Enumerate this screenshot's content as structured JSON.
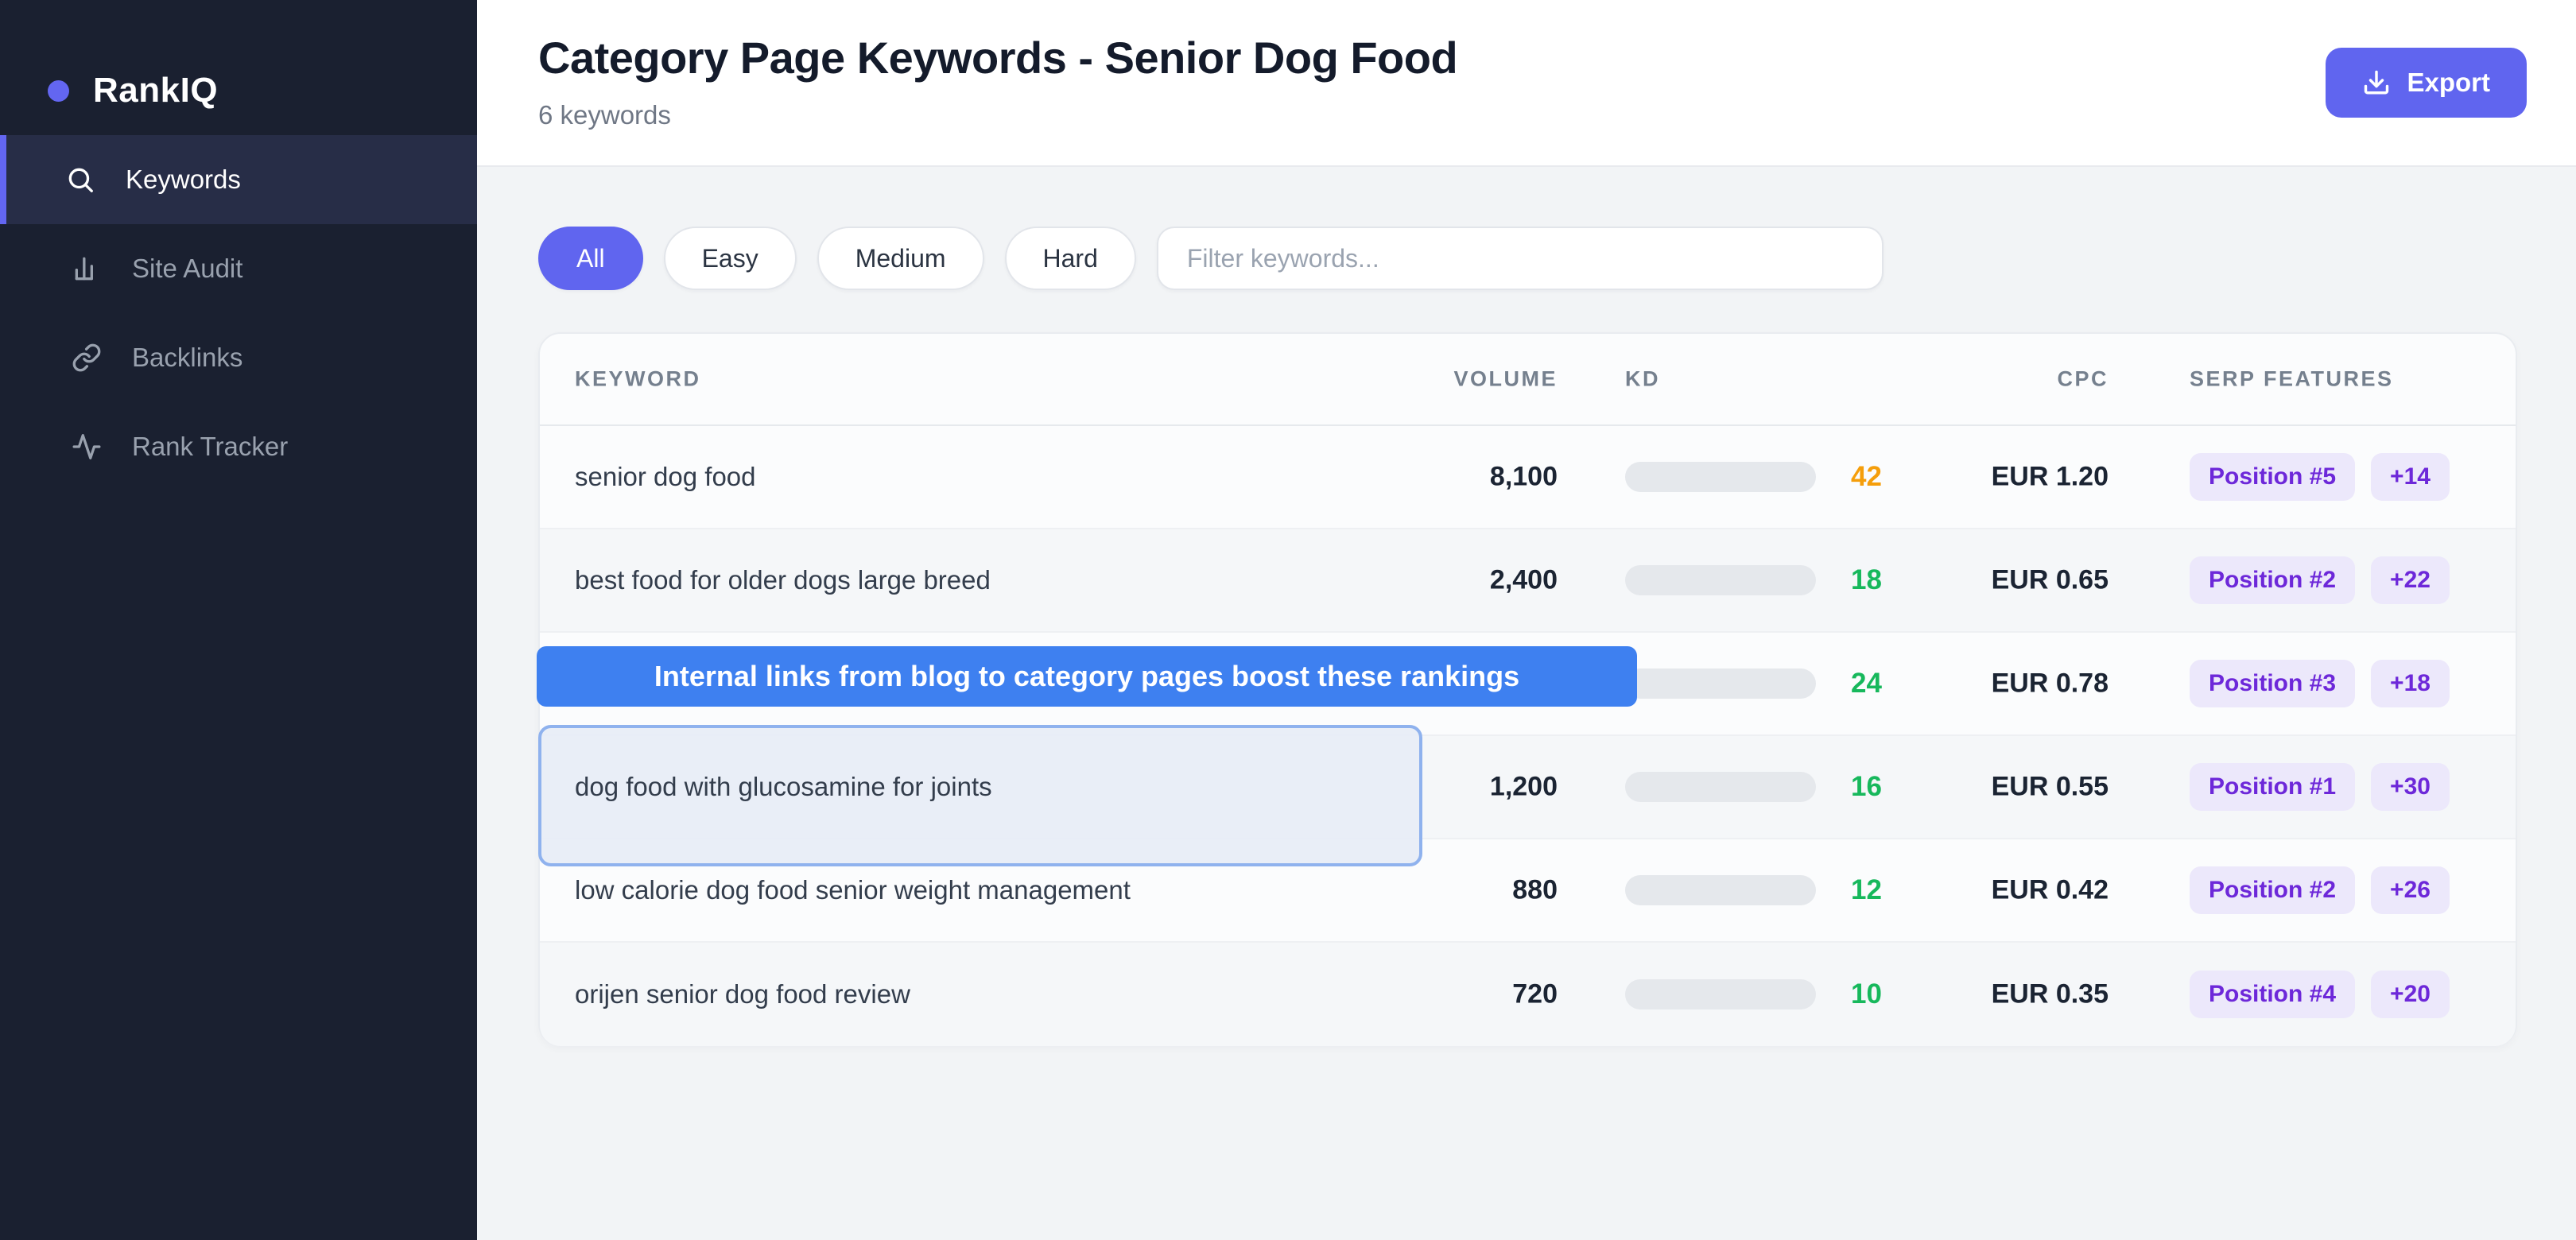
{
  "brand": {
    "name": "RankIQ"
  },
  "sidebar": {
    "items": [
      {
        "label": "Keywords",
        "icon": "search-icon",
        "active": true
      },
      {
        "label": "Site Audit",
        "icon": "bar-chart-icon",
        "active": false
      },
      {
        "label": "Backlinks",
        "icon": "link-icon",
        "active": false
      },
      {
        "label": "Rank Tracker",
        "icon": "activity-icon",
        "active": false
      }
    ]
  },
  "header": {
    "title": "Category Page Keywords - Senior Dog Food",
    "subtitle": "6 keywords",
    "export_label": "Export"
  },
  "filters": {
    "pills": [
      {
        "label": "All",
        "active": true
      },
      {
        "label": "Easy",
        "active": false
      },
      {
        "label": "Medium",
        "active": false
      },
      {
        "label": "Hard",
        "active": false
      }
    ],
    "search_placeholder": "Filter keywords..."
  },
  "table": {
    "columns": [
      "KEYWORD",
      "VOLUME",
      "KD",
      "CPC",
      "SERP FEATURES"
    ],
    "rows": [
      {
        "keyword": "senior dog food",
        "volume": "8,100",
        "kd": 42,
        "kd_fill": "#f9a60b",
        "kd_text": "#f59e0b",
        "cpc": "EUR 1.20",
        "position": "Position #5",
        "serp_extra": "+14",
        "highlighted": false
      },
      {
        "keyword": "best food for older dogs large breed",
        "volume": "2,400",
        "kd": 18,
        "kd_fill": "#22c55e",
        "kd_text": "#17b85c",
        "cpc": "EUR 0.65",
        "position": "Position #2",
        "serp_extra": "+22",
        "highlighted": false
      },
      {
        "keyword": "",
        "volume": "",
        "kd": 24,
        "kd_fill": "#22c55e",
        "kd_text": "#17b85c",
        "cpc": "EUR 0.78",
        "position": "Position #3",
        "serp_extra": "+18",
        "highlighted": false
      },
      {
        "keyword": "dog food with glucosamine for joints",
        "volume": "1,200",
        "kd": 16,
        "kd_fill": "#22c55e",
        "kd_text": "#17b85c",
        "cpc": "EUR 0.55",
        "position": "Position #1",
        "serp_extra": "+30",
        "highlighted": true
      },
      {
        "keyword": "low calorie dog food senior weight management",
        "volume": "880",
        "kd": 12,
        "kd_fill": "#22c55e",
        "kd_text": "#17b85c",
        "cpc": "EUR 0.42",
        "position": "Position #2",
        "serp_extra": "+26",
        "highlighted": false
      },
      {
        "keyword": "orijen senior dog food review",
        "volume": "720",
        "kd": 10,
        "kd_fill": "#22c55e",
        "kd_text": "#17b85c",
        "cpc": "EUR 0.35",
        "position": "Position #4",
        "serp_extra": "+20",
        "highlighted": false
      }
    ]
  },
  "overlays": {
    "tooltip_text": "Internal links from blog to category pages boost these rankings"
  },
  "colors": {
    "accent": "#6366f1",
    "tooltip_blue": "#3e80f0",
    "highlight_border": "#8fb2ee",
    "kd_orange": "#f9a60b",
    "kd_green": "#22c55e",
    "badge_purple": "#6d28d9"
  }
}
